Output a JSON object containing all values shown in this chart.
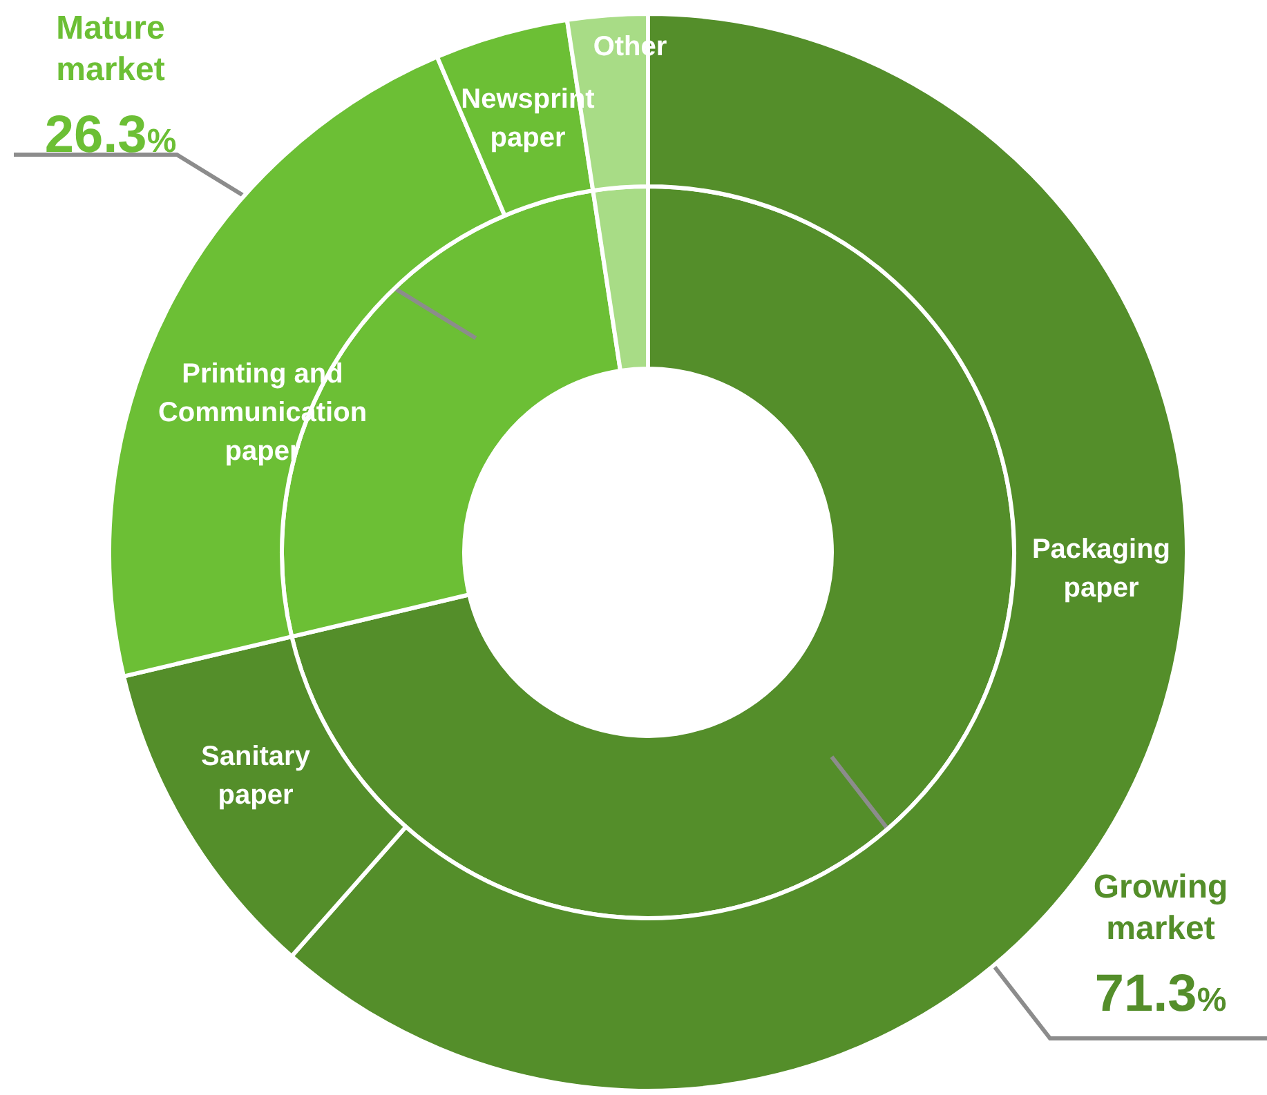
{
  "chart_data": [
    {
      "type": "donut",
      "categories": [
        "Growing market",
        "Mature market",
        null
      ],
      "values": [
        71.3,
        26.3,
        2.4
      ],
      "colors": [
        "#548e2a",
        "#6cbf35",
        "#a8dc86"
      ],
      "value_labels": [
        "71.3%",
        "26.3%",
        null
      ]
    },
    {
      "type": "donut",
      "categories": [
        "Packaging paper",
        "Sanitary paper",
        "Printing and Communication paper",
        "Newsprint paper",
        "Other"
      ],
      "values": [
        61.5,
        9.8,
        22.3,
        4.0,
        2.4
      ],
      "colors": [
        "#548e2a",
        "#548e2a",
        "#6cbf35",
        "#6cbf35",
        "#a8dc86"
      ]
    }
  ]
}
